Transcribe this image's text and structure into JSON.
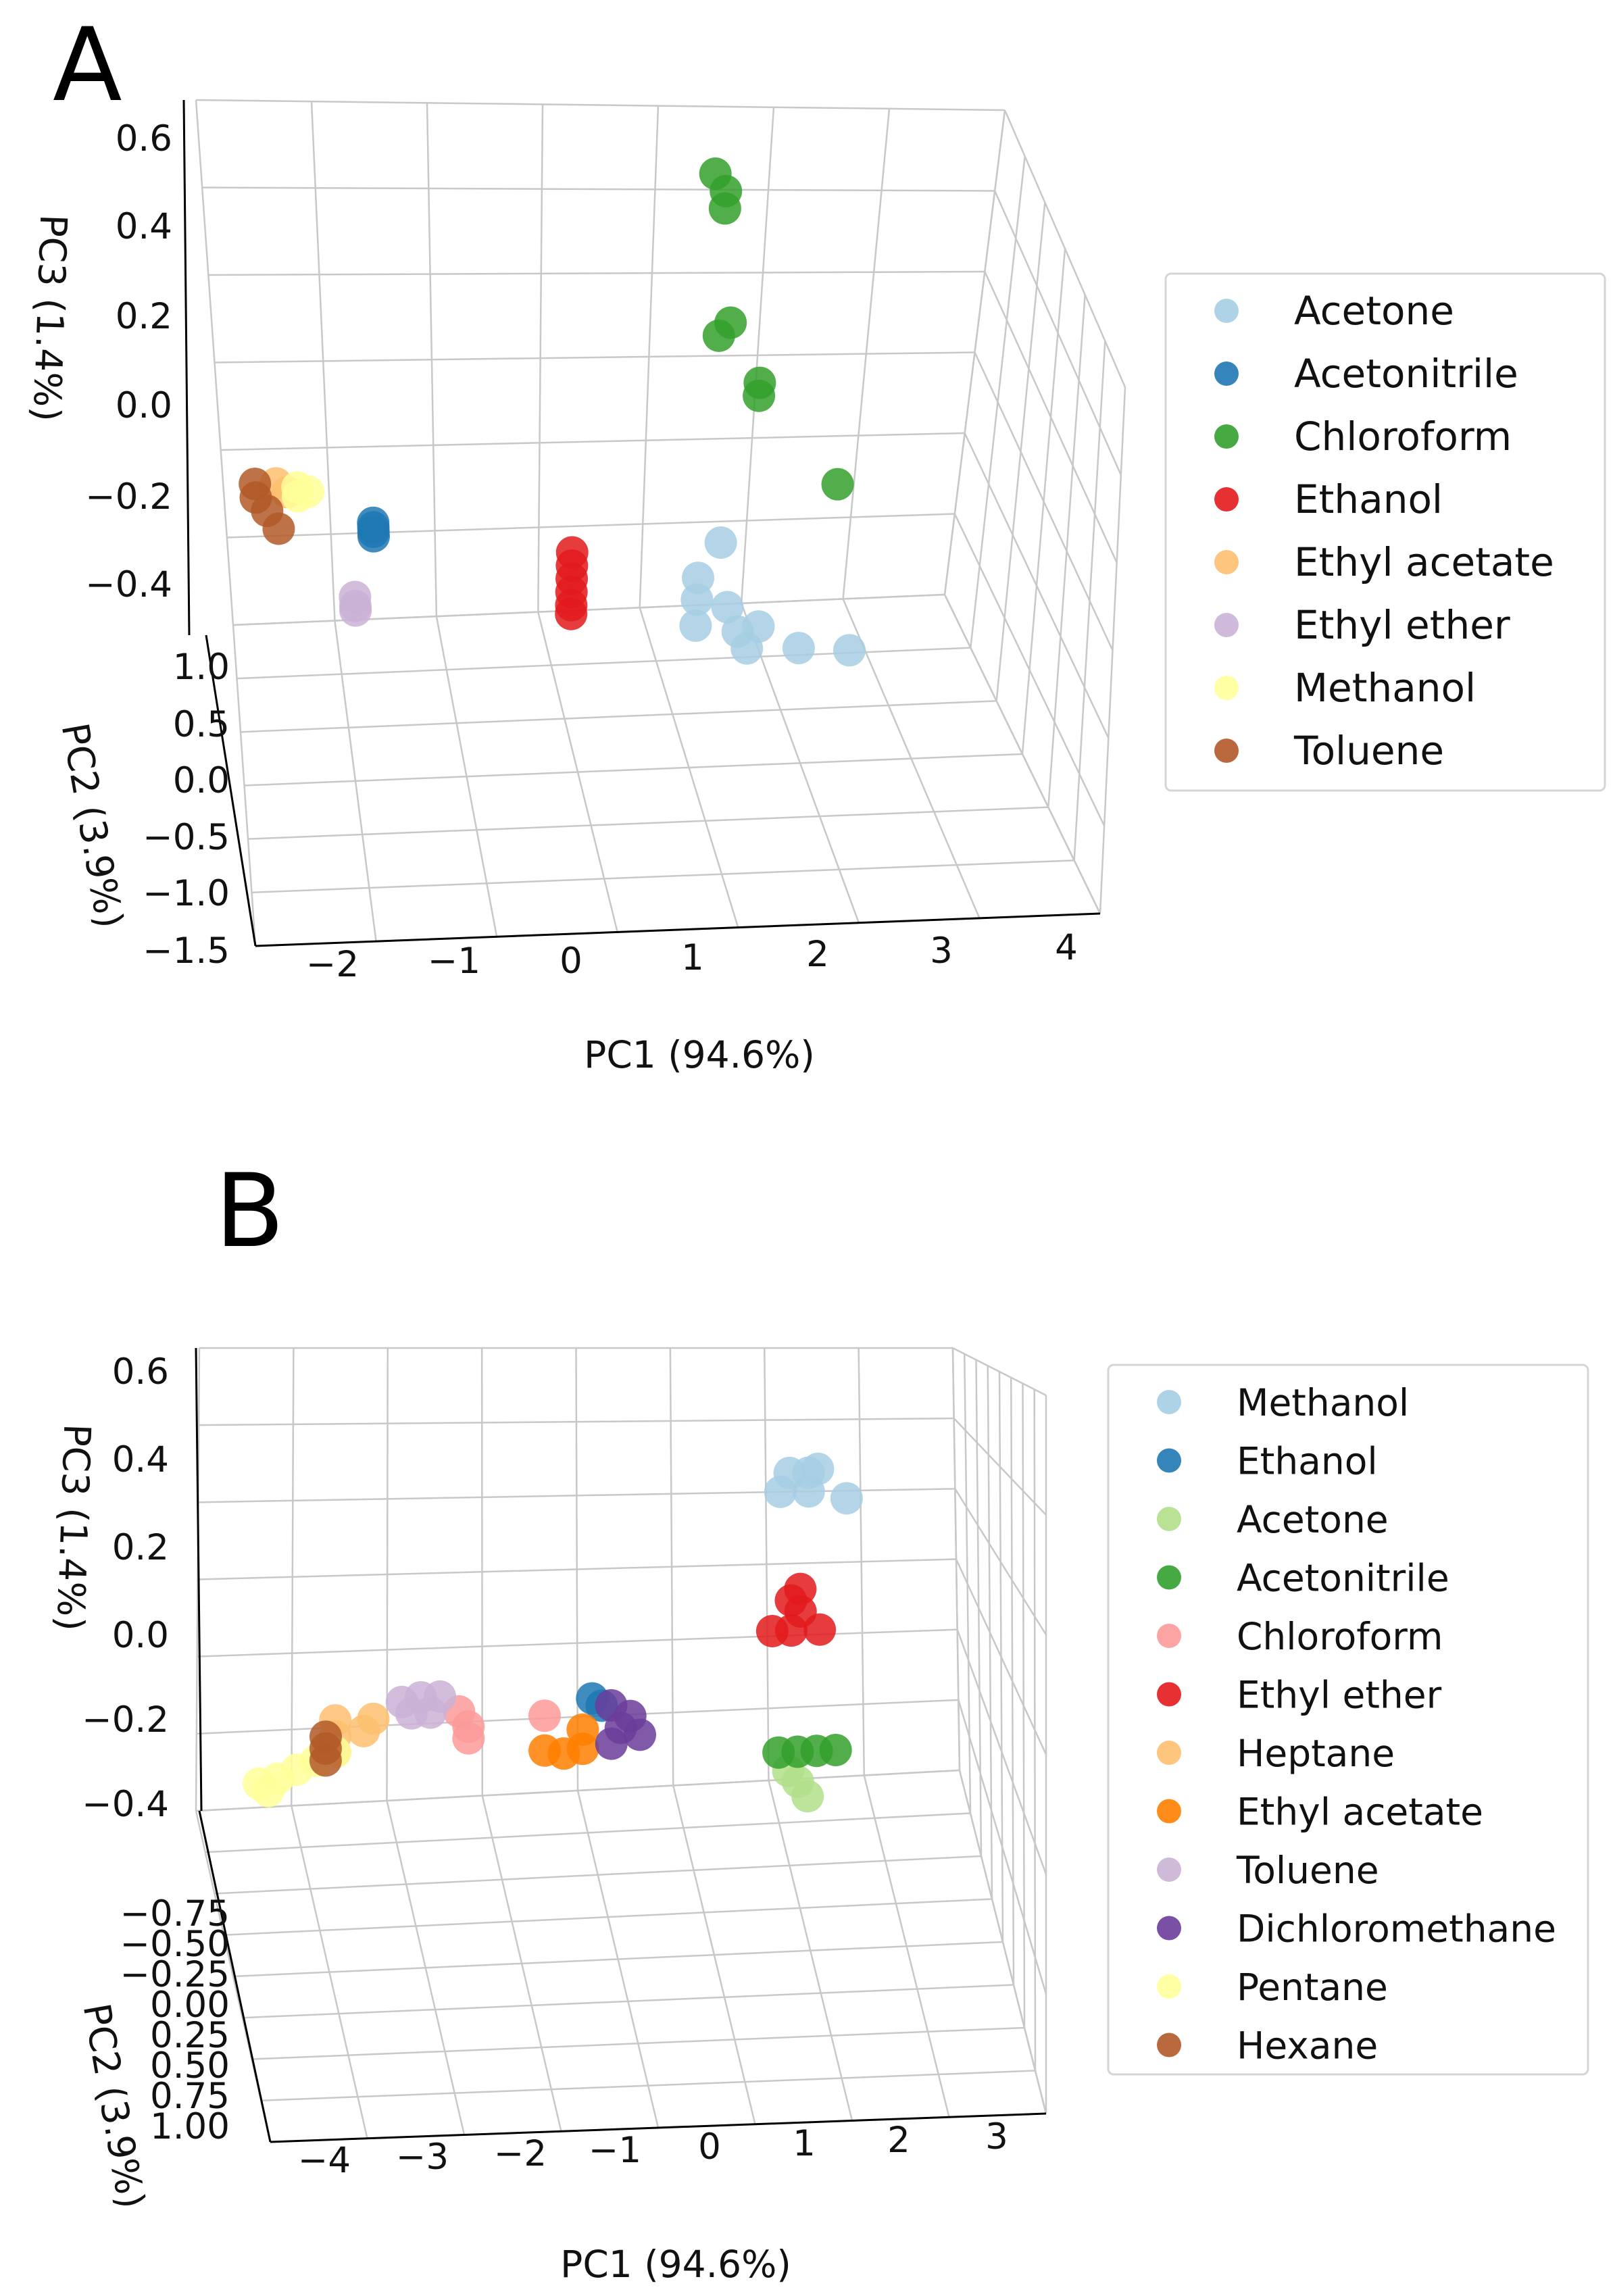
{
  "figure": {
    "panel_a_label": "A",
    "panel_b_label": "B"
  },
  "chart_data": [
    {
      "id": "A",
      "type": "scatter",
      "projection": "3d",
      "title": "",
      "xlabel": "PC1 (94.6%)",
      "ylabel": "PC2 (3.9%)",
      "zlabel": "PC3 (1.4%)",
      "x_ticks": [
        "−2",
        "−1",
        "0",
        "1",
        "2",
        "3",
        "4"
      ],
      "y_ticks": [
        "−1.5",
        "−1.0",
        "−0.5",
        "0.0",
        "0.5",
        "1.0"
      ],
      "z_ticks": [
        "−0.4",
        "−0.2",
        "0.0",
        "0.2",
        "0.4",
        "0.6"
      ],
      "xlim": [
        -2.5,
        4.5
      ],
      "ylim": [
        -1.5,
        1.2
      ],
      "zlim": [
        -0.5,
        0.65
      ],
      "grid": true,
      "legend_position": "right",
      "series": [
        {
          "name": "Acetone",
          "color": "#a6cee3",
          "points": [
            [
              2.2,
              -0.5,
              -0.24
            ],
            [
              2.0,
              -0.5,
              -0.32
            ],
            [
              2.0,
              -0.5,
              -0.37
            ],
            [
              2.3,
              -0.5,
              -0.39
            ],
            [
              2.0,
              -0.5,
              -0.43
            ],
            [
              2.4,
              -0.9,
              -0.42
            ],
            [
              2.6,
              -0.9,
              -0.41
            ],
            [
              2.5,
              -0.9,
              -0.46
            ],
            [
              3.0,
              -1.1,
              -0.45
            ],
            [
              3.5,
              -1.1,
              -0.46
            ]
          ]
        },
        {
          "name": "Acetonitrile",
          "color": "#1f78b4",
          "points": [
            [
              -1.1,
              0.2,
              -0.22
            ],
            [
              -1.1,
              0.2,
              -0.23
            ],
            [
              -1.1,
              0.2,
              -0.24
            ],
            [
              -1.1,
              0.2,
              -0.25
            ]
          ]
        },
        {
          "name": "Chloroform",
          "color": "#33a02c",
          "points": [
            [
              2.0,
              0.4,
              0.55
            ],
            [
              2.1,
              0.4,
              0.51
            ],
            [
              2.1,
              0.4,
              0.47
            ],
            [
              2.2,
              0.2,
              0.22
            ],
            [
              2.1,
              0.2,
              0.19
            ],
            [
              2.5,
              0.2,
              0.08
            ],
            [
              2.5,
              0.2,
              0.05
            ],
            [
              3.3,
              0.2,
              -0.16
            ]
          ]
        },
        {
          "name": "Ethanol",
          "color": "#e31a1c",
          "points": [
            [
              0.8,
              0.2,
              -0.3
            ],
            [
              0.8,
              0.2,
              -0.33
            ],
            [
              0.8,
              0.2,
              -0.36
            ],
            [
              0.8,
              0.2,
              -0.39
            ],
            [
              0.8,
              0.2,
              -0.42
            ],
            [
              0.8,
              0.2,
              -0.44
            ]
          ]
        },
        {
          "name": "Ethyl acetate",
          "color": "#fdbf6f",
          "points": [
            [
              -2.0,
              0.7,
              -0.16
            ],
            [
              -1.9,
              0.7,
              -0.18
            ]
          ]
        },
        {
          "name": "Ethyl ether",
          "color": "#cab2d6",
          "points": [
            [
              -1.3,
              0.3,
              -0.39
            ],
            [
              -1.3,
              0.3,
              -0.41
            ],
            [
              -1.3,
              0.3,
              -0.42
            ]
          ]
        },
        {
          "name": "Methanol",
          "color": "#ffff99",
          "points": [
            [
              -1.8,
              0.7,
              -0.17
            ],
            [
              -1.8,
              0.7,
              -0.19
            ],
            [
              -1.7,
              0.7,
              -0.18
            ]
          ]
        },
        {
          "name": "Toluene",
          "color": "#b15928",
          "points": [
            [
              -2.2,
              0.7,
              -0.16
            ],
            [
              -2.2,
              0.7,
              -0.19
            ],
            [
              -2.1,
              0.7,
              -0.22
            ],
            [
              -2.0,
              0.7,
              -0.26
            ]
          ]
        }
      ]
    },
    {
      "id": "B",
      "type": "scatter",
      "projection": "3d",
      "title": "",
      "xlabel": "PC1 (94.6%)",
      "ylabel": "PC2 (3.9%)",
      "zlabel": "PC3 (1.4%)",
      "x_ticks": [
        "−4",
        "−3",
        "−2",
        "−1",
        "0",
        "1",
        "2",
        "3"
      ],
      "y_ticks": [
        "−0.75",
        "−0.50",
        "−0.25",
        "0.00",
        "0.25",
        "0.50",
        "0.75",
        "1.00"
      ],
      "z_ticks": [
        "−0.4",
        "−0.2",
        "0.0",
        "0.2",
        "0.4",
        "0.6"
      ],
      "xlim": [
        -4.5,
        3.5
      ],
      "ylim": [
        -0.75,
        1.0
      ],
      "zlim": [
        -0.5,
        0.65
      ],
      "grid": true,
      "legend_position": "right",
      "series": [
        {
          "name": "Methanol",
          "color": "#a6cee3",
          "points": [
            [
              1.7,
              0.5,
              0.38
            ],
            [
              1.9,
              0.5,
              0.38
            ],
            [
              2.0,
              0.5,
              0.39
            ],
            [
              1.6,
              0.5,
              0.33
            ],
            [
              1.9,
              0.5,
              0.33
            ],
            [
              2.3,
              0.5,
              0.31
            ]
          ]
        },
        {
          "name": "Ethanol",
          "color": "#1f78b4",
          "points": [
            [
              -0.4,
              0.5,
              -0.2
            ],
            [
              -0.3,
              0.5,
              -0.22
            ]
          ]
        },
        {
          "name": "Acetone",
          "color": "#b2df8a",
          "points": [
            [
              1.6,
              0.0,
              -0.35
            ],
            [
              1.7,
              0.0,
              -0.38
            ],
            [
              1.8,
              0.0,
              -0.42
            ]
          ]
        },
        {
          "name": "Acetonitrile",
          "color": "#33a02c",
          "points": [
            [
              1.5,
              0.0,
              -0.3
            ],
            [
              1.7,
              0.0,
              -0.3
            ],
            [
              1.9,
              0.0,
              -0.3
            ],
            [
              2.1,
              0.0,
              -0.3
            ]
          ]
        },
        {
          "name": "Chloroform",
          "color": "#fb9a99",
          "points": [
            [
              -1.8,
              0.5,
              -0.22
            ],
            [
              -1.7,
              0.5,
              -0.26
            ],
            [
              -1.7,
              0.5,
              -0.29
            ],
            [
              -0.9,
              0.5,
              -0.24
            ]
          ]
        },
        {
          "name": "Ethyl ether",
          "color": "#e31a1c",
          "points": [
            [
              1.8,
              0.5,
              0.07
            ],
            [
              1.7,
              0.5,
              0.04
            ],
            [
              1.8,
              0.5,
              0.01
            ],
            [
              1.5,
              0.5,
              -0.04
            ],
            [
              1.7,
              0.5,
              -0.04
            ],
            [
              2.0,
              0.5,
              -0.04
            ]
          ]
        },
        {
          "name": "Heptane",
          "color": "#fdbf6f",
          "points": [
            [
              -3.1,
              0.5,
              -0.23
            ],
            [
              -3.1,
              0.5,
              -0.27
            ],
            [
              -3.1,
              0.5,
              -0.31
            ],
            [
              -2.8,
              0.5,
              -0.26
            ],
            [
              -2.7,
              0.5,
              -0.23
            ]
          ]
        },
        {
          "name": "Ethyl acetate",
          "color": "#ff7f00",
          "points": [
            [
              -0.9,
              0.5,
              -0.33
            ],
            [
              -0.7,
              0.5,
              -0.34
            ],
            [
              -0.5,
              0.5,
              -0.33
            ],
            [
              -0.5,
              0.5,
              -0.28
            ]
          ]
        },
        {
          "name": "Toluene",
          "color": "#cab2d6",
          "points": [
            [
              -2.4,
              0.5,
              -0.19
            ],
            [
              -2.2,
              0.5,
              -0.18
            ],
            [
              -2.0,
              0.5,
              -0.18
            ],
            [
              -2.3,
              0.5,
              -0.22
            ],
            [
              -2.1,
              0.5,
              -0.22
            ]
          ]
        },
        {
          "name": "Dichloromethane",
          "color": "#6a3d9a",
          "points": [
            [
              -0.2,
              0.5,
              -0.22
            ],
            [
              0.0,
              0.5,
              -0.25
            ],
            [
              -0.1,
              0.5,
              -0.28
            ],
            [
              0.1,
              0.5,
              -0.3
            ],
            [
              -0.2,
              0.5,
              -0.32
            ]
          ]
        },
        {
          "name": "Pentane",
          "color": "#ffff99",
          "points": [
            [
              -3.9,
              0.5,
              -0.38
            ],
            [
              -3.7,
              0.5,
              -0.37
            ],
            [
              -3.5,
              0.5,
              -0.35
            ],
            [
              -3.3,
              0.5,
              -0.33
            ],
            [
              -3.1,
              0.5,
              -0.31
            ],
            [
              -3.8,
              0.5,
              -0.4
            ]
          ]
        },
        {
          "name": "Hexane",
          "color": "#b15928",
          "points": [
            [
              -3.2,
              0.5,
              -0.27
            ],
            [
              -3.2,
              0.5,
              -0.3
            ],
            [
              -3.2,
              0.5,
              -0.33
            ]
          ]
        }
      ]
    }
  ]
}
